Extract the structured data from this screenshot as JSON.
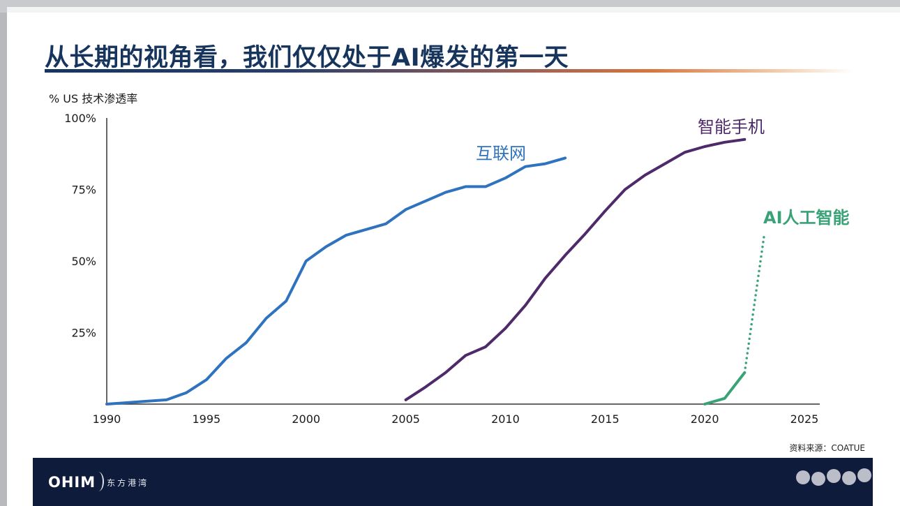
{
  "slide": {
    "title": "从长期的视角看，我们仅仅处于AI爆发的第一天",
    "source": "资料来源：COATUE"
  },
  "footer": {
    "logo_text": "OHIM",
    "logo_cn": "东方港湾"
  },
  "colors": {
    "title": "#17355c",
    "footer_bg": "#0f1b3b",
    "internet": "#2f73be",
    "smartphone": "#4f2a6b",
    "ai": "#3aa277"
  },
  "chart_data": {
    "type": "line",
    "ylabel": "% US 技术渗透率",
    "xlim": [
      1990,
      2025
    ],
    "ylim": [
      0,
      100
    ],
    "xticks": [
      "1990",
      "1995",
      "2000",
      "2005",
      "2010",
      "2015",
      "2020",
      "2025"
    ],
    "yticks": [
      "25%",
      "50%",
      "75%",
      "100%"
    ],
    "grid": false,
    "series": [
      {
        "name": "互联网",
        "style": "solid",
        "x": [
          1990,
          1991,
          1992,
          1993,
          1994,
          1995,
          1996,
          1997,
          1998,
          1999,
          2000,
          2001,
          2002,
          2003,
          2004,
          2005,
          2006,
          2007,
          2008,
          2009,
          2010,
          2011,
          2012,
          2013
        ],
        "y": [
          0,
          0.5,
          1,
          1.5,
          4,
          8.5,
          16,
          21.5,
          30,
          36,
          50,
          55,
          59,
          61,
          63,
          68,
          71,
          74,
          76,
          76,
          79,
          83,
          84,
          86
        ]
      },
      {
        "name": "智能手机",
        "style": "solid",
        "x": [
          2005,
          2006,
          2007,
          2008,
          2009,
          2010,
          2011,
          2012,
          2013,
          2014,
          2015,
          2016,
          2017,
          2018,
          2019,
          2020,
          2021,
          2022
        ],
        "y": [
          1.5,
          6,
          11,
          17,
          20,
          26.5,
          34.5,
          44,
          52,
          59.5,
          67.5,
          75,
          80,
          84,
          88,
          90,
          91.5,
          92.5
        ]
      },
      {
        "name": "AI人工智能",
        "style": "solid",
        "x": [
          2020,
          2021,
          2022
        ],
        "y": [
          0,
          2,
          11
        ]
      },
      {
        "name": "",
        "style": "dotted",
        "x": [
          2022,
          2023
        ],
        "y": [
          11,
          60
        ]
      }
    ]
  }
}
